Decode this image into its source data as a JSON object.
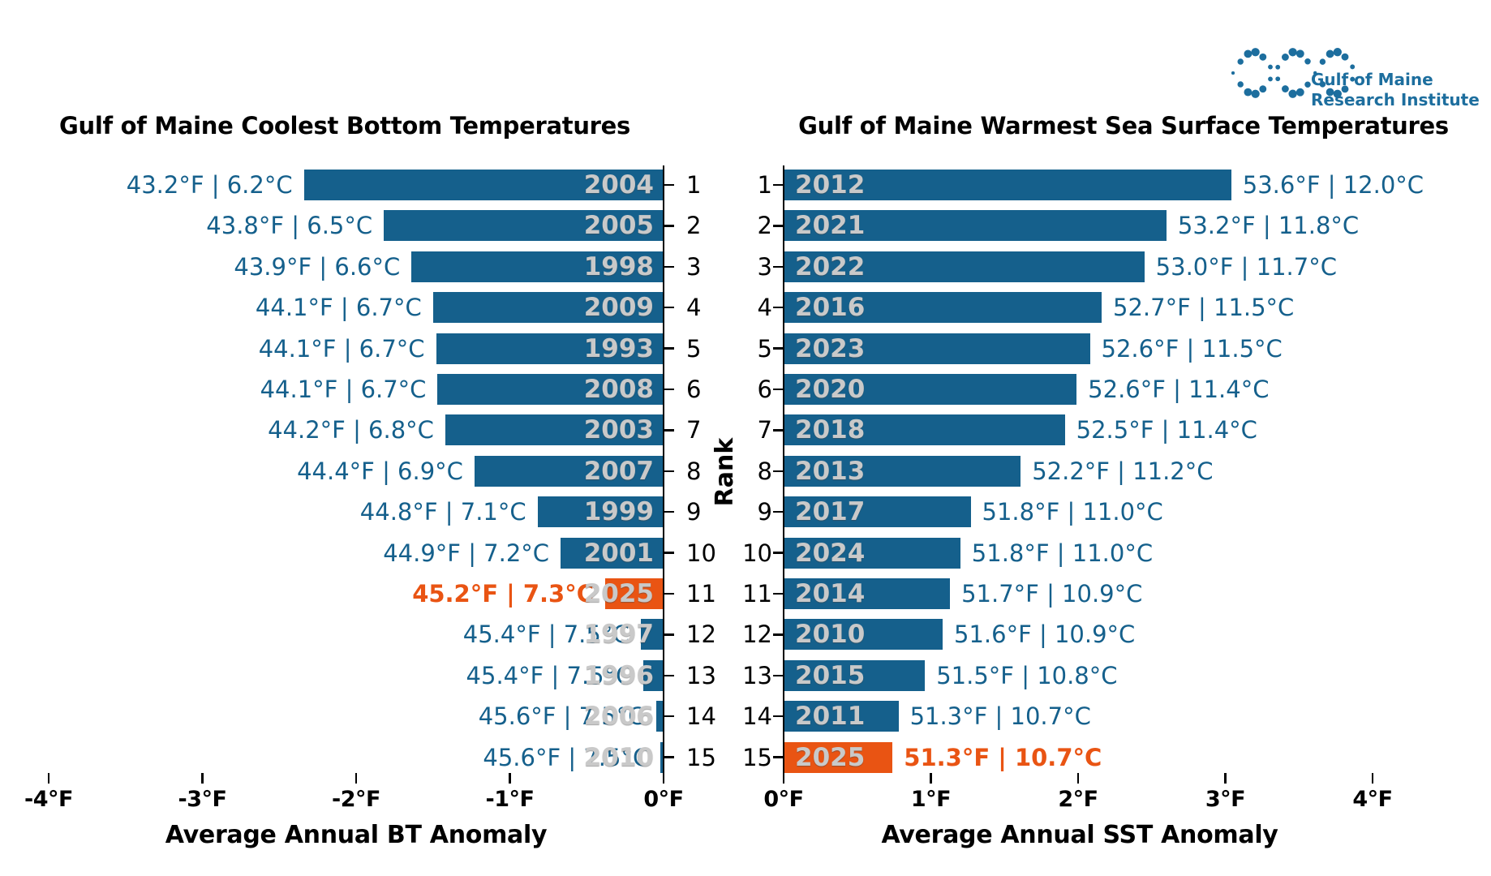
{
  "logo": {
    "line1": "Gulf of Maine",
    "line2": "Research Institute",
    "color": "#1D6E9E"
  },
  "colors": {
    "bar_blue": "#15608C",
    "highlight_orange": "#E95413",
    "year_silver": "#C9C9C9",
    "value_blue": "#15608C",
    "axis_black": "#000000"
  },
  "chart_data": [
    {
      "type": "bar",
      "orientation": "horizontal, bars extend left (negative anomalies)",
      "title": "Gulf of Maine Coolest Bottom Temperatures",
      "xlabel": "Average Annual BT Anomaly",
      "ylabel": "Rank",
      "xlim": [
        -4.4,
        0
      ],
      "xticks": [
        -4,
        -3,
        -2,
        -1,
        0
      ],
      "xtick_labels": [
        "-4°F",
        "-3°F",
        "-2°F",
        "-1°F",
        "0°F"
      ],
      "grid": false,
      "rows": [
        {
          "rank": 1,
          "year": "2004",
          "value_label": "43.2°F | 6.2°C",
          "anomaly_f": -2.34,
          "highlight": false
        },
        {
          "rank": 2,
          "year": "2005",
          "value_label": "43.8°F | 6.5°C",
          "anomaly_f": -1.82,
          "highlight": false
        },
        {
          "rank": 3,
          "year": "1998",
          "value_label": "43.9°F | 6.6°C",
          "anomaly_f": -1.64,
          "highlight": false
        },
        {
          "rank": 4,
          "year": "2009",
          "value_label": "44.1°F | 6.7°C",
          "anomaly_f": -1.5,
          "highlight": false
        },
        {
          "rank": 5,
          "year": "1993",
          "value_label": "44.1°F | 6.7°C",
          "anomaly_f": -1.48,
          "highlight": false
        },
        {
          "rank": 6,
          "year": "2008",
          "value_label": "44.1°F | 6.7°C",
          "anomaly_f": -1.47,
          "highlight": false
        },
        {
          "rank": 7,
          "year": "2003",
          "value_label": "44.2°F | 6.8°C",
          "anomaly_f": -1.42,
          "highlight": false
        },
        {
          "rank": 8,
          "year": "2007",
          "value_label": "44.4°F | 6.9°C",
          "anomaly_f": -1.23,
          "highlight": false
        },
        {
          "rank": 9,
          "year": "1999",
          "value_label": "44.8°F | 7.1°C",
          "anomaly_f": -0.82,
          "highlight": false
        },
        {
          "rank": 10,
          "year": "2001",
          "value_label": "44.9°F | 7.2°C",
          "anomaly_f": -0.67,
          "highlight": false
        },
        {
          "rank": 11,
          "year": "2025",
          "value_label": "45.2°F | 7.3°C",
          "anomaly_f": -0.38,
          "highlight": true
        },
        {
          "rank": 12,
          "year": "1997",
          "value_label": "45.4°F | 7.5°C",
          "anomaly_f": -0.15,
          "highlight": false
        },
        {
          "rank": 13,
          "year": "1996",
          "value_label": "45.4°F | 7.5°C",
          "anomaly_f": -0.13,
          "highlight": false
        },
        {
          "rank": 14,
          "year": "2006",
          "value_label": "45.6°F | 7.5°C",
          "anomaly_f": -0.05,
          "highlight": false
        },
        {
          "rank": 15,
          "year": "2010",
          "value_label": "45.6°F | 7.5°C",
          "anomaly_f": -0.02,
          "highlight": false
        }
      ]
    },
    {
      "type": "bar",
      "orientation": "horizontal, bars extend right (positive anomalies)",
      "title": "Gulf of Maine Warmest Sea Surface Temperatures",
      "xlabel": "Average Annual SST Anomaly",
      "ylabel": "Rank",
      "xlim": [
        0,
        4.4
      ],
      "xticks": [
        0,
        1,
        2,
        3,
        4
      ],
      "xtick_labels": [
        "0°F",
        "1°F",
        "2°F",
        "3°F",
        "4°F"
      ],
      "grid": false,
      "rows": [
        {
          "rank": 1,
          "year": "2012",
          "value_label": "53.6°F | 12.0°C",
          "anomaly_f": 3.04,
          "highlight": false
        },
        {
          "rank": 2,
          "year": "2021",
          "value_label": "53.2°F | 11.8°C",
          "anomaly_f": 2.6,
          "highlight": false
        },
        {
          "rank": 3,
          "year": "2022",
          "value_label": "53.0°F | 11.7°C",
          "anomaly_f": 2.45,
          "highlight": false
        },
        {
          "rank": 4,
          "year": "2016",
          "value_label": "52.7°F | 11.5°C",
          "anomaly_f": 2.16,
          "highlight": false
        },
        {
          "rank": 5,
          "year": "2023",
          "value_label": "52.6°F | 11.5°C",
          "anomaly_f": 2.08,
          "highlight": false
        },
        {
          "rank": 6,
          "year": "2020",
          "value_label": "52.6°F | 11.4°C",
          "anomaly_f": 1.99,
          "highlight": false
        },
        {
          "rank": 7,
          "year": "2018",
          "value_label": "52.5°F | 11.4°C",
          "anomaly_f": 1.91,
          "highlight": false
        },
        {
          "rank": 8,
          "year": "2013",
          "value_label": "52.2°F | 11.2°C",
          "anomaly_f": 1.61,
          "highlight": false
        },
        {
          "rank": 9,
          "year": "2017",
          "value_label": "51.8°F | 11.0°C",
          "anomaly_f": 1.27,
          "highlight": false
        },
        {
          "rank": 10,
          "year": "2024",
          "value_label": "51.8°F | 11.0°C",
          "anomaly_f": 1.2,
          "highlight": false
        },
        {
          "rank": 11,
          "year": "2014",
          "value_label": "51.7°F | 10.9°C",
          "anomaly_f": 1.13,
          "highlight": false
        },
        {
          "rank": 12,
          "year": "2010",
          "value_label": "51.6°F | 10.9°C",
          "anomaly_f": 1.08,
          "highlight": false
        },
        {
          "rank": 13,
          "year": "2015",
          "value_label": "51.5°F | 10.8°C",
          "anomaly_f": 0.96,
          "highlight": false
        },
        {
          "rank": 14,
          "year": "2011",
          "value_label": "51.3°F | 10.7°C",
          "anomaly_f": 0.78,
          "highlight": false
        },
        {
          "rank": 15,
          "year": "2025",
          "value_label": "51.3°F | 10.7°C",
          "anomaly_f": 0.74,
          "highlight": true
        }
      ]
    }
  ]
}
